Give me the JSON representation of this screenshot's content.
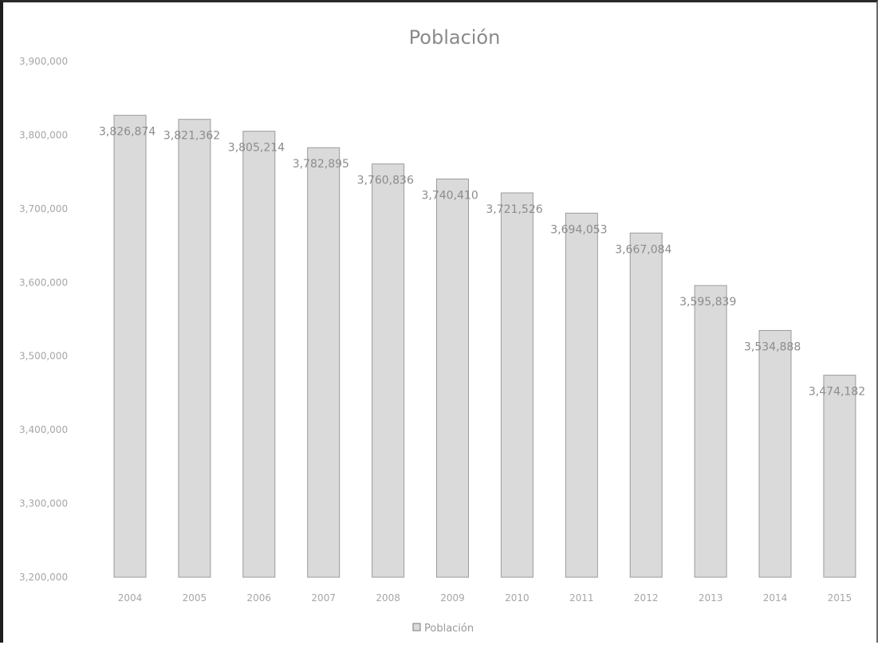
{
  "chart_data": {
    "type": "bar",
    "title": "Población",
    "xlabel": "",
    "ylabel": "",
    "categories": [
      "2004",
      "2005",
      "2006",
      "2007",
      "2008",
      "2009",
      "2010",
      "2011",
      "2012",
      "2013",
      "2014",
      "2015"
    ],
    "series": [
      {
        "name": "Población",
        "values": [
          3826874,
          3821362,
          3805214,
          3782895,
          3760836,
          3740410,
          3721526,
          3694053,
          3667084,
          3595839,
          3534888,
          3474182
        ],
        "labels": [
          "3,826,874",
          "3,821,362",
          "3,805,214",
          "3,782,895",
          "3,760,836",
          "3,740,410",
          "3,721,526",
          "3,694,053",
          "3,667,084",
          "3,595,839",
          "3,534,888",
          "3,474,182"
        ]
      }
    ],
    "ylim": [
      3200000,
      3900000
    ],
    "y_ticks": [
      3200000,
      3300000,
      3400000,
      3500000,
      3600000,
      3700000,
      3800000,
      3900000
    ],
    "y_tick_labels": [
      "3,200,000",
      "3,300,000",
      "3,400,000",
      "3,500,000",
      "3,600,000",
      "3,700,000",
      "3,800,000",
      "3,900,000"
    ],
    "grid": false,
    "legend": "bottom",
    "colors": {
      "bar_fill": "#dadada",
      "bar_stroke": "#9b9b9b",
      "text": "#9a9a9a",
      "title": "#8a8a8a"
    }
  }
}
